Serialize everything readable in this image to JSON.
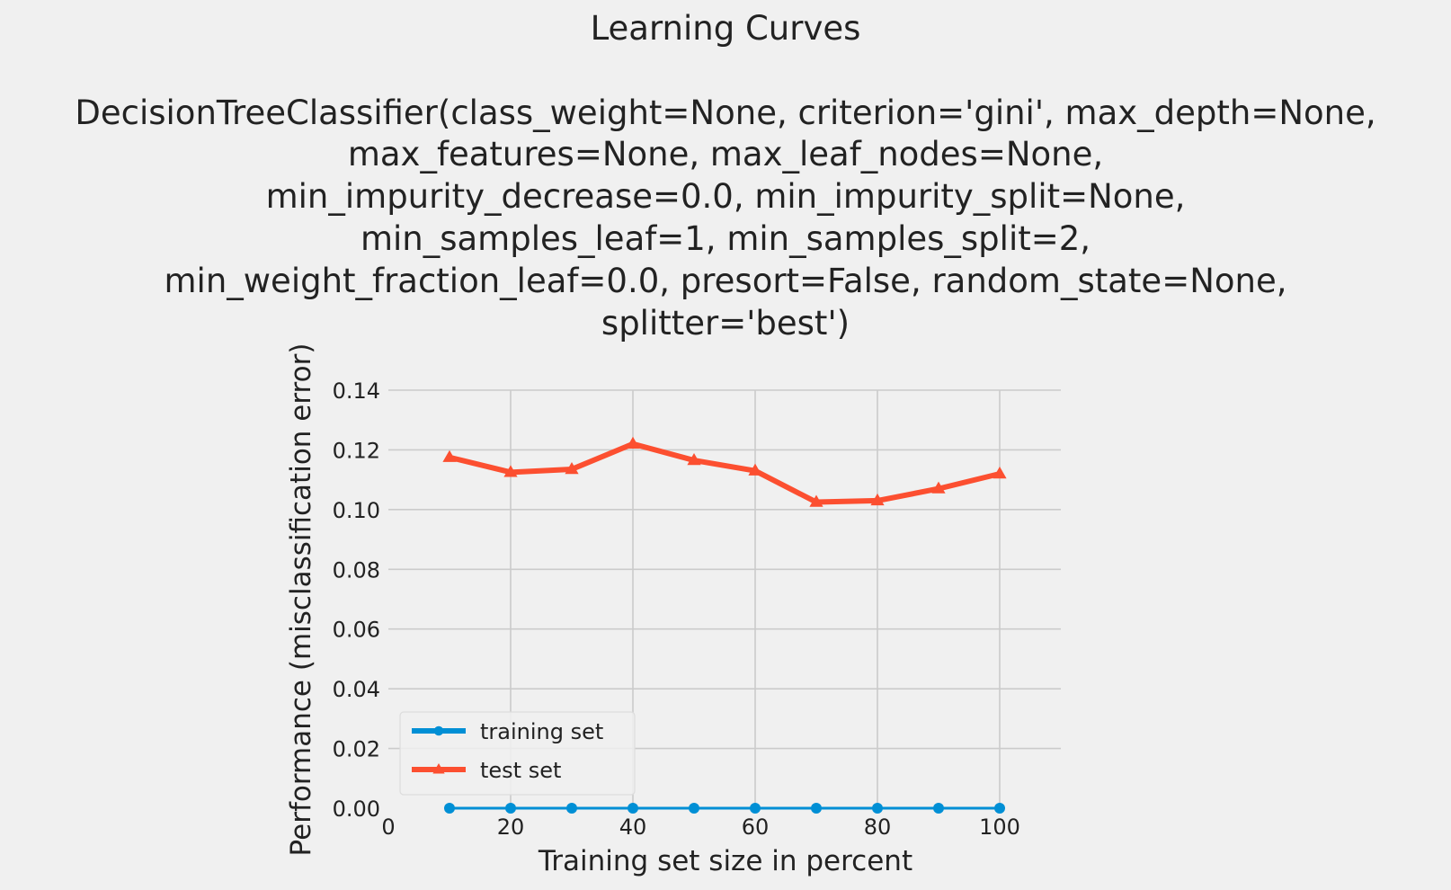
{
  "chart_data": {
    "type": "line",
    "title": "Learning Curves",
    "subtitle_lines": [
      "DecisionTreeClassifier(class_weight=None, criterion='gini', max_depth=None,",
      "max_features=None, max_leaf_nodes=None,",
      "min_impurity_decrease=0.0, min_impurity_split=None,",
      "min_samples_leaf=1, min_samples_split=2,",
      "min_weight_fraction_leaf=0.0, presort=False, random_state=None,",
      "splitter='best')"
    ],
    "xlabel": "Training set size in percent",
    "ylabel": "Performance (misclassification error)",
    "xlim": [
      0,
      110
    ],
    "ylim": [
      0,
      0.14
    ],
    "xticks": [
      "0",
      "20",
      "40",
      "60",
      "80",
      "100"
    ],
    "yticks": [
      "0.00",
      "0.02",
      "0.04",
      "0.06",
      "0.08",
      "0.10",
      "0.12",
      "0.14"
    ],
    "grid": true,
    "legend_position": "lower-left",
    "x": [
      10,
      20,
      30,
      40,
      50,
      60,
      70,
      80,
      90,
      100
    ],
    "series": [
      {
        "name": "training set",
        "color": "#008fd5",
        "marker": "circle",
        "values": [
          0,
          0,
          0,
          0,
          0,
          0,
          0,
          0,
          0,
          0
        ]
      },
      {
        "name": "test set",
        "color": "#fc4f30",
        "marker": "triangle",
        "values": [
          0.1175,
          0.1125,
          0.1135,
          0.122,
          0.1165,
          0.113,
          0.1025,
          0.103,
          0.107,
          0.112
        ]
      }
    ]
  }
}
